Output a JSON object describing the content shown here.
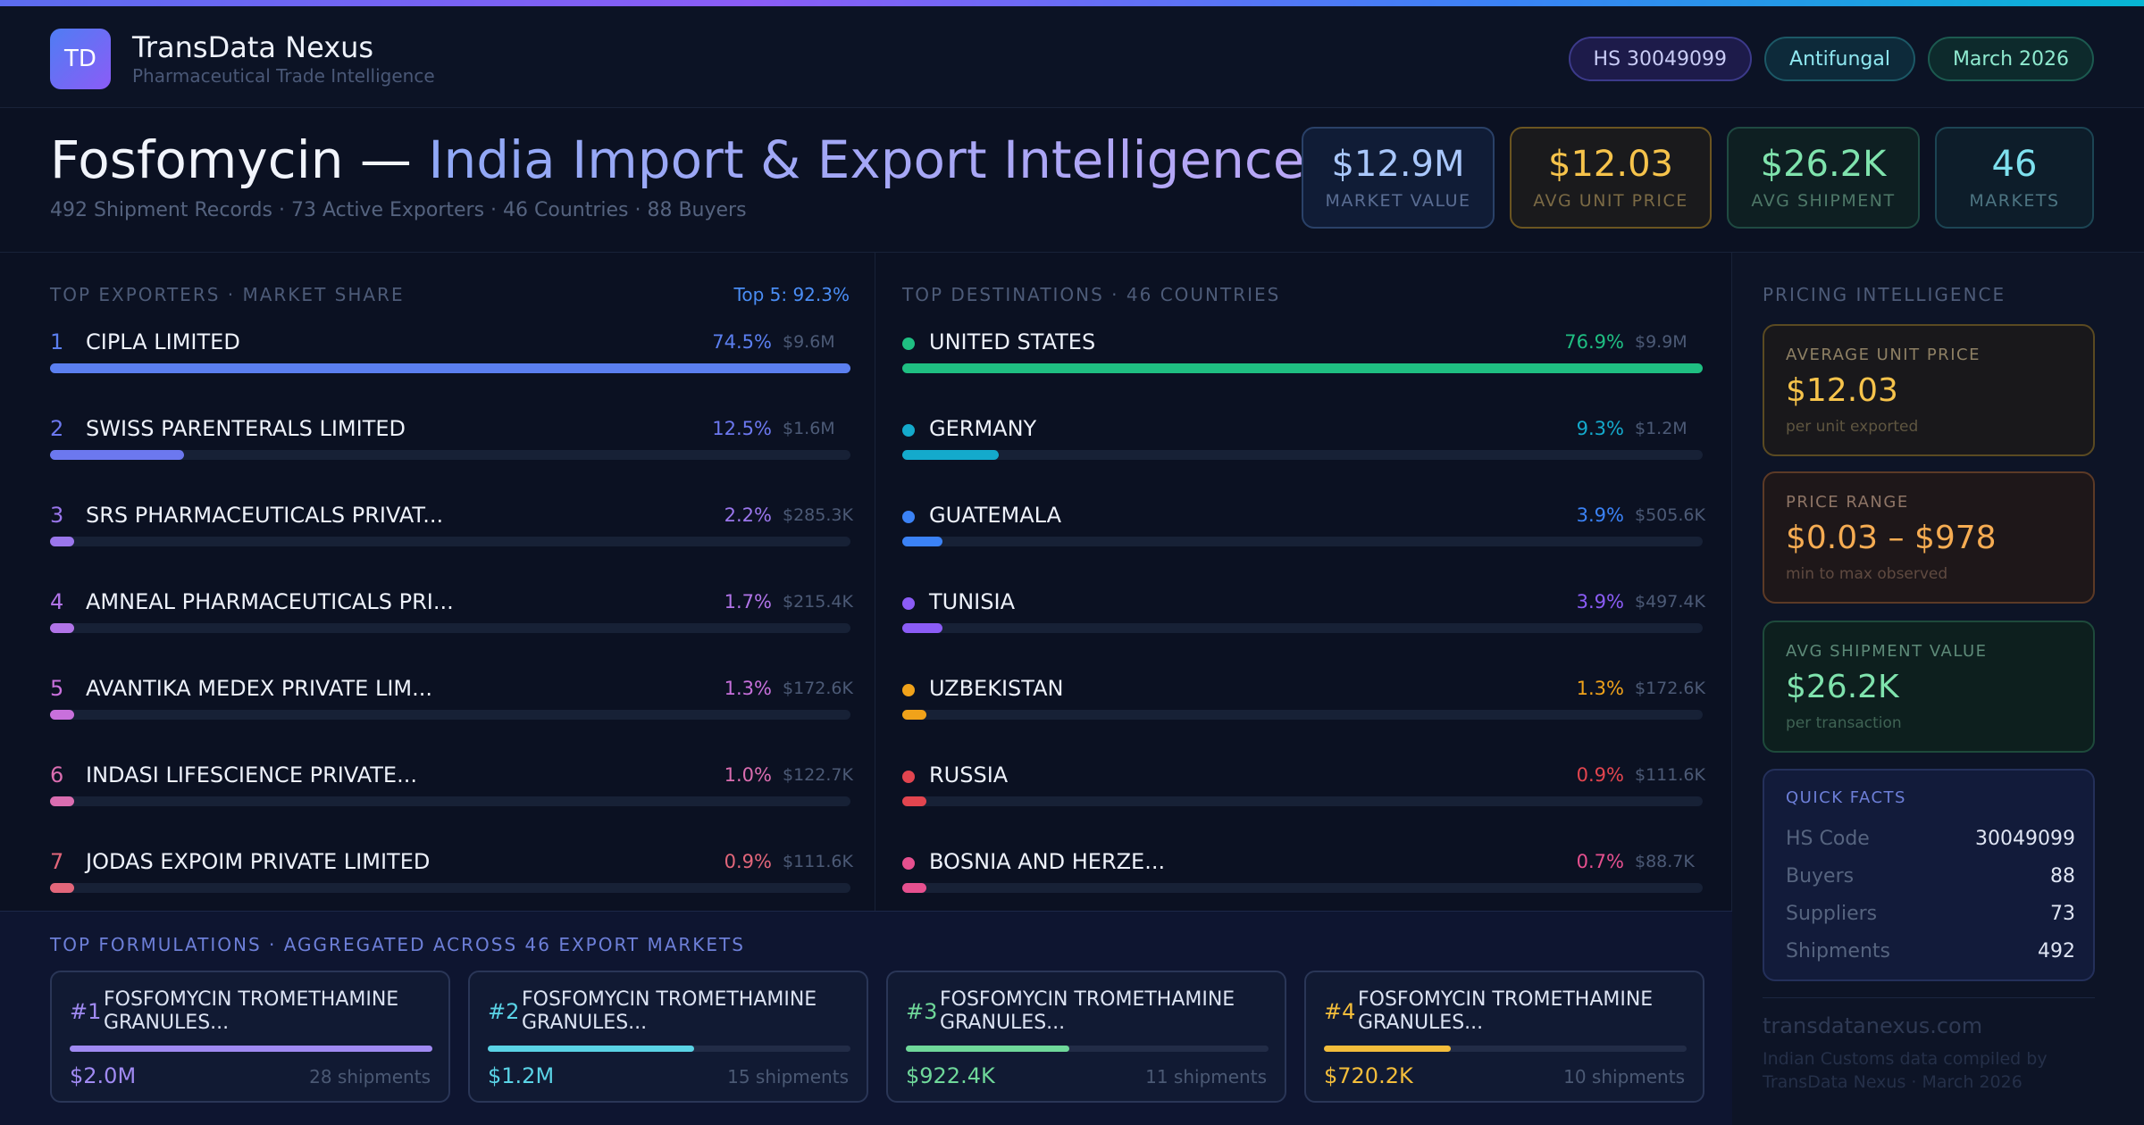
{
  "brand": {
    "initials": "TD",
    "name": "TransData Nexus",
    "tagline": "Pharmaceutical Trade Intelligence"
  },
  "chips": {
    "hs": "HS 30049099",
    "category": "Antifungal",
    "period": "March 2026"
  },
  "title": {
    "product": "Fosfomycin —",
    "rest": "India Import & Export Intelligence",
    "subtitle": "492 Shipment Records · 73 Active Exporters · 46 Countries · 88 Buyers"
  },
  "kpis": [
    {
      "value": "$12.9M",
      "label": "MARKET VALUE"
    },
    {
      "value": "$12.03",
      "label": "AVG UNIT PRICE"
    },
    {
      "value": "$26.2K",
      "label": "AVG SHIPMENT"
    },
    {
      "value": "46",
      "label": "MARKETS"
    }
  ],
  "exporters": {
    "heading": "TOP EXPORTERS · MARKET SHARE",
    "top5": "Top 5: 92.3%",
    "rows": [
      {
        "rank": "1",
        "name": "CIPLA LIMITED",
        "pct": "74.5%",
        "usd": "$9.6M",
        "share": 74.5,
        "color": "#5b7ff0"
      },
      {
        "rank": "2",
        "name": "SWISS PARENTERALS LIMITED",
        "pct": "12.5%",
        "usd": "$1.6M",
        "share": 12.5,
        "color": "#6c78ef"
      },
      {
        "rank": "3",
        "name": "SRS PHARMACEUTICALS PRIVAT...",
        "pct": "2.2%",
        "usd": "$285.3K",
        "share": 2.2,
        "color": "#9a76ec"
      },
      {
        "rank": "4",
        "name": "AMNEAL PHARMACEUTICALS PRI...",
        "pct": "1.7%",
        "usd": "$215.4K",
        "share": 1.7,
        "color": "#b174e8"
      },
      {
        "rank": "5",
        "name": "AVANTIKA MEDEX PRIVATE LIM...",
        "pct": "1.3%",
        "usd": "$172.6K",
        "share": 1.3,
        "color": "#c870dc"
      },
      {
        "rank": "6",
        "name": "INDASI LIFESCIENCE PRIVATE...",
        "pct": "1.0%",
        "usd": "$122.7K",
        "share": 1.0,
        "color": "#da6db0"
      },
      {
        "rank": "7",
        "name": "JODAS EXPOIM PRIVATE LIMITED",
        "pct": "0.9%",
        "usd": "$111.6K",
        "share": 0.9,
        "color": "#e2667a"
      }
    ]
  },
  "destinations": {
    "heading": "TOP DESTINATIONS · 46 COUNTRIES",
    "rows": [
      {
        "name": "UNITED STATES",
        "pct": "76.9%",
        "usd": "$9.9M",
        "share": 76.9,
        "color": "#1fbf82"
      },
      {
        "name": "GERMANY",
        "pct": "9.3%",
        "usd": "$1.2M",
        "share": 9.3,
        "color": "#14aacc"
      },
      {
        "name": "GUATEMALA",
        "pct": "3.9%",
        "usd": "$505.6K",
        "share": 3.9,
        "color": "#3b82f6"
      },
      {
        "name": "TUNISIA",
        "pct": "3.9%",
        "usd": "$497.4K",
        "share": 3.9,
        "color": "#8b5cf6"
      },
      {
        "name": "UZBEKISTAN",
        "pct": "1.3%",
        "usd": "$172.6K",
        "share": 1.3,
        "color": "#f0a21a"
      },
      {
        "name": "RUSSIA",
        "pct": "0.9%",
        "usd": "$111.6K",
        "share": 0.9,
        "color": "#e2454f"
      },
      {
        "name": "BOSNIA AND HERZE...",
        "pct": "0.7%",
        "usd": "$88.7K",
        "share": 0.7,
        "color": "#e6508f"
      }
    ]
  },
  "formulations": {
    "heading": "TOP FORMULATIONS · AGGREGATED ACROSS 46 EXPORT MARKETS",
    "cards": [
      {
        "rank": "#1",
        "name": "FOSFOMYCIN TROMETHAMINE GRANULES...",
        "value": "$2.0M",
        "shipments": "28 shipments",
        "share": 1.0,
        "color": "#a08af2"
      },
      {
        "rank": "#2",
        "name": "FOSFOMYCIN TROMETHAMINE GRANULES...",
        "value": "$1.2M",
        "shipments": "15 shipments",
        "share": 0.57,
        "color": "#5ad3e6"
      },
      {
        "rank": "#3",
        "name": "FOSFOMYCIN TROMETHAMINE GRANULES...",
        "value": "$922.4K",
        "shipments": "11 shipments",
        "share": 0.45,
        "color": "#6fd89a"
      },
      {
        "rank": "#4",
        "name": "FOSFOMYCIN TROMETHAMINE GRANULES...",
        "value": "$720.2K",
        "shipments": "10 shipments",
        "share": 0.35,
        "color": "#f3bd3b"
      }
    ]
  },
  "pricing": {
    "heading": "PRICING INTELLIGENCE",
    "avg_unit": {
      "label": "AVERAGE UNIT PRICE",
      "value": "$12.03",
      "note": "per unit exported"
    },
    "range": {
      "label": "PRICE RANGE",
      "value": "$0.03 – $978",
      "note": "min to max observed"
    },
    "avg_ship": {
      "label": "AVG SHIPMENT VALUE",
      "value": "$26.2K",
      "note": "per transaction"
    },
    "facts": {
      "label": "QUICK FACTS",
      "items": [
        {
          "k": "HS Code",
          "v": "30049099"
        },
        {
          "k": "Buyers",
          "v": "88"
        },
        {
          "k": "Suppliers",
          "v": "73"
        },
        {
          "k": "Shipments",
          "v": "492"
        }
      ]
    },
    "site": "transdatanexus.com",
    "credit": "Indian Customs data compiled by TransData Nexus · March 2026"
  }
}
